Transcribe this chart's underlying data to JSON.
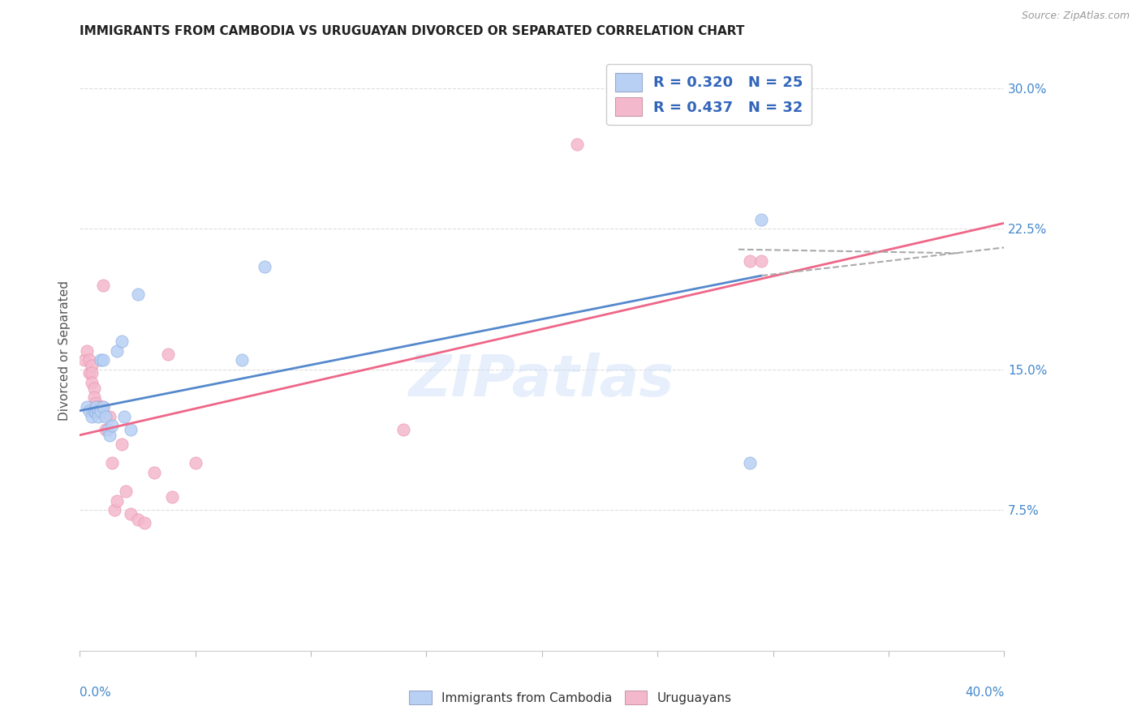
{
  "title": "IMMIGRANTS FROM CAMBODIA VS URUGUAYAN DIVORCED OR SEPARATED CORRELATION CHART",
  "source": "Source: ZipAtlas.com",
  "ylabel": "Divorced or Separated",
  "yticks": [
    0.0,
    0.075,
    0.15,
    0.225,
    0.3
  ],
  "ytick_labels": [
    "",
    "7.5%",
    "15.0%",
    "22.5%",
    "30.0%"
  ],
  "xlim": [
    0.0,
    0.4
  ],
  "ylim": [
    0.0,
    0.32
  ],
  "watermark": "ZIPatlas",
  "blue_color": "#b8d0f4",
  "pink_color": "#f4b8cc",
  "blue_scatter": [
    [
      0.003,
      0.13
    ],
    [
      0.004,
      0.128
    ],
    [
      0.005,
      0.125
    ],
    [
      0.006,
      0.128
    ],
    [
      0.007,
      0.127
    ],
    [
      0.007,
      0.13
    ],
    [
      0.008,
      0.128
    ],
    [
      0.008,
      0.125
    ],
    [
      0.009,
      0.128
    ],
    [
      0.009,
      0.155
    ],
    [
      0.01,
      0.155
    ],
    [
      0.01,
      0.13
    ],
    [
      0.011,
      0.125
    ],
    [
      0.012,
      0.118
    ],
    [
      0.013,
      0.115
    ],
    [
      0.014,
      0.12
    ],
    [
      0.016,
      0.16
    ],
    [
      0.018,
      0.165
    ],
    [
      0.019,
      0.125
    ],
    [
      0.022,
      0.118
    ],
    [
      0.025,
      0.19
    ],
    [
      0.07,
      0.155
    ],
    [
      0.08,
      0.205
    ],
    [
      0.295,
      0.23
    ],
    [
      0.29,
      0.1
    ]
  ],
  "pink_scatter": [
    [
      0.002,
      0.155
    ],
    [
      0.003,
      0.16
    ],
    [
      0.004,
      0.148
    ],
    [
      0.004,
      0.155
    ],
    [
      0.005,
      0.152
    ],
    [
      0.005,
      0.148
    ],
    [
      0.005,
      0.143
    ],
    [
      0.006,
      0.14
    ],
    [
      0.006,
      0.135
    ],
    [
      0.007,
      0.132
    ],
    [
      0.008,
      0.13
    ],
    [
      0.009,
      0.13
    ],
    [
      0.01,
      0.195
    ],
    [
      0.01,
      0.13
    ],
    [
      0.011,
      0.118
    ],
    [
      0.013,
      0.125
    ],
    [
      0.014,
      0.1
    ],
    [
      0.015,
      0.075
    ],
    [
      0.016,
      0.08
    ],
    [
      0.018,
      0.11
    ],
    [
      0.02,
      0.085
    ],
    [
      0.022,
      0.073
    ],
    [
      0.025,
      0.07
    ],
    [
      0.028,
      0.068
    ],
    [
      0.032,
      0.095
    ],
    [
      0.038,
      0.158
    ],
    [
      0.04,
      0.082
    ],
    [
      0.05,
      0.1
    ],
    [
      0.14,
      0.118
    ],
    [
      0.215,
      0.27
    ],
    [
      0.29,
      0.208
    ],
    [
      0.295,
      0.208
    ]
  ],
  "blue_line": {
    "x0": 0.0,
    "y0": 0.128,
    "x1": 0.295,
    "y1": 0.2
  },
  "pink_line": {
    "x0": 0.0,
    "y0": 0.115,
    "x1": 0.4,
    "y1": 0.228
  },
  "blue_dash_line": {
    "x0": 0.295,
    "y0": 0.2,
    "x1": 0.4,
    "y1": 0.215
  },
  "pink_dash_line": {
    "x0": 0.285,
    "y0": 0.214,
    "x1": 0.38,
    "y1": 0.212
  }
}
